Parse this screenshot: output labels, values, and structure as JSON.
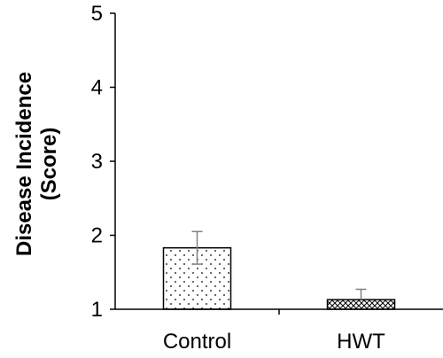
{
  "chart_data": {
    "type": "bar",
    "categories": [
      "Control",
      "HWT"
    ],
    "values": [
      1.83,
      1.13
    ],
    "error_high": [
      2.05,
      1.27
    ],
    "error_low": [
      1.61,
      1.13
    ],
    "ylabel_line1": "Disease Incidence",
    "ylabel_line2": "(Score)",
    "xlabel": "",
    "ylim": [
      1,
      5
    ],
    "yticks": [
      "1",
      "2",
      "3",
      "4",
      "5"
    ],
    "bar_fill": [
      "dots",
      "crosshatch"
    ],
    "grid": false,
    "legend": "none"
  }
}
